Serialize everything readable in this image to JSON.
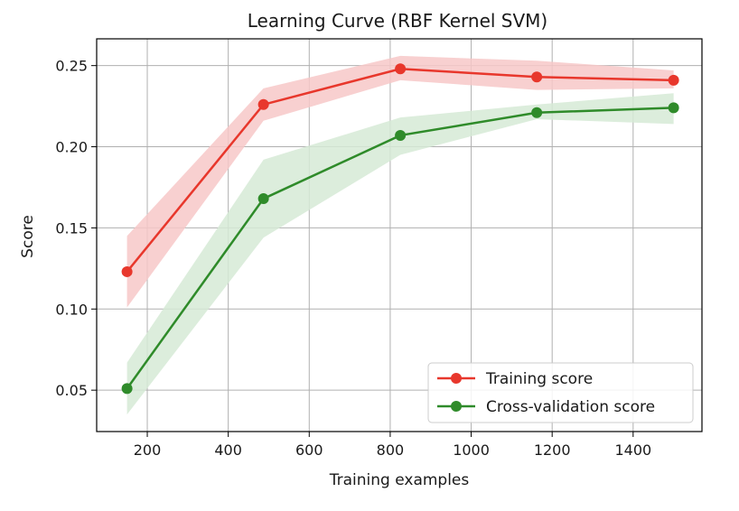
{
  "chart_data": {
    "type": "line",
    "title": "Learning Curve (RBF Kernel SVM)",
    "xlabel": "Training examples",
    "ylabel": "Score",
    "xlim": [
      75,
      1570
    ],
    "ylim": [
      0.0245,
      0.2665
    ],
    "xticks": [
      200,
      400,
      600,
      800,
      1000,
      1200,
      1400
    ],
    "yticks": [
      0.05,
      0.1,
      0.15,
      0.2,
      0.25
    ],
    "grid": true,
    "legend_position": "lower-right",
    "x": [
      150,
      487,
      825,
      1162,
      1500
    ],
    "series": [
      {
        "name": "Training score",
        "color": "#e8372c",
        "band_color": "#f7c8c8",
        "values": [
          0.123,
          0.226,
          0.248,
          0.243,
          0.241
        ],
        "band_upper": [
          0.145,
          0.236,
          0.256,
          0.253,
          0.247
        ],
        "band_lower": [
          0.101,
          0.216,
          0.241,
          0.235,
          0.236
        ]
      },
      {
        "name": "Cross-validation score",
        "color": "#2f8b2a",
        "band_color": "#d6ead6",
        "values": [
          0.051,
          0.168,
          0.207,
          0.221,
          0.224
        ],
        "band_upper": [
          0.067,
          0.192,
          0.218,
          0.226,
          0.233
        ],
        "band_lower": [
          0.035,
          0.144,
          0.195,
          0.217,
          0.214
        ]
      }
    ]
  }
}
